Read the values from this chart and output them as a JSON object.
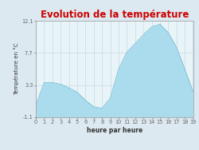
{
  "title": "Evolution de la température",
  "xlabel": "heure par heure",
  "ylabel": "Température en °C",
  "ylim": [
    -1.1,
    12.1
  ],
  "xlim": [
    0,
    19
  ],
  "yticks": [
    -1.1,
    3.3,
    7.7,
    12.1
  ],
  "ytick_labels": [
    "-1.1",
    "3.3",
    "7.7",
    "12.1"
  ],
  "xtick_labels": [
    "0",
    "1",
    "2",
    "3",
    "4",
    "5",
    "6",
    "7",
    "8",
    "9",
    "10",
    "11",
    "12",
    "13",
    "14",
    "15",
    "16",
    "17",
    "18",
    "19"
  ],
  "hours": [
    0,
    1,
    2,
    3,
    4,
    5,
    6,
    7,
    8,
    9,
    10,
    11,
    12,
    13,
    14,
    15,
    16,
    17,
    18,
    19
  ],
  "temperatures": [
    0.5,
    3.6,
    3.65,
    3.4,
    2.9,
    2.3,
    1.2,
    0.3,
    0.1,
    1.5,
    5.5,
    7.8,
    9.0,
    10.2,
    11.3,
    11.65,
    10.5,
    8.5,
    5.5,
    2.4
  ],
  "fill_color": "#aadcee",
  "line_color": "#7bbdd4",
  "title_color": "#cc0000",
  "bg_color": "#dde9f0",
  "plot_bg_color": "#e8f4f8",
  "grid_color": "#bdd4e0",
  "tick_label_color": "#666666",
  "axis_label_color": "#333333",
  "title_fontsize": 8.5,
  "axis_label_fontsize": 5.5,
  "tick_fontsize": 4.8,
  "ylabel_fontsize": 5.0
}
